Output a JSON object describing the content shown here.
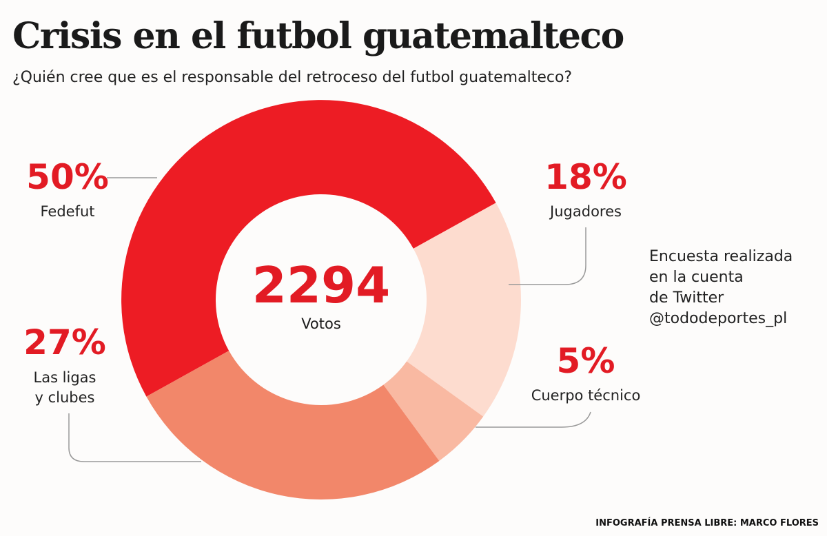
{
  "title": "Crisis en el futbol guatemalteco",
  "subtitle": "¿Quién cree que es el responsable del retroceso del futbol guatemalteco?",
  "center": {
    "value": "2294",
    "label": "Votos"
  },
  "note": [
    "Encuesta realizada",
    "en la cuenta",
    "de Twitter",
    "@tododeportes_pl"
  ],
  "credit": "INFOGRAFÍA PRENSA LIBRE: MARCO FLORES",
  "chart_data": {
    "type": "pie",
    "donut": true,
    "total_votes": 2294,
    "slices": [
      {
        "label": "Fedefut",
        "value": 50,
        "display": "50%",
        "color": "#ed1c24"
      },
      {
        "label": "Jugadores",
        "value": 18,
        "display": "18%",
        "color": "#fddccf"
      },
      {
        "label": "Cuerpo técnico",
        "value": 5,
        "display": "5%",
        "color": "#f9b9a2"
      },
      {
        "label": "Las ligas y clubes",
        "value": 27,
        "display": "27%",
        "color": "#f2876a",
        "label_lines": [
          "Las ligas",
          "y clubes"
        ]
      }
    ]
  }
}
